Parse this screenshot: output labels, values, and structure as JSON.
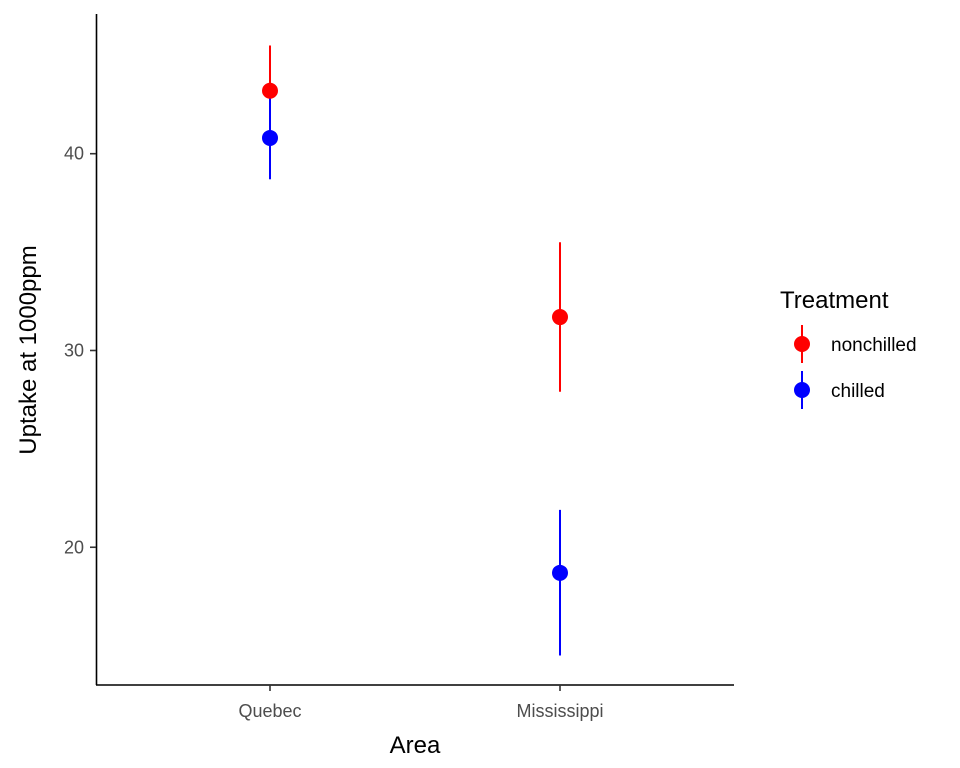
{
  "chart_data": {
    "type": "scatter",
    "xlabel": "Area",
    "ylabel": "Uptake at 1000ppm",
    "categories": [
      "Quebec",
      "Mississippi"
    ],
    "ylim": [
      13,
      47.1
    ],
    "yticks": [
      20,
      30,
      40
    ],
    "grid": false,
    "legend": {
      "title": "Treatment",
      "placement": "right"
    },
    "series": [
      {
        "name": "nonchilled",
        "color": "#ff0000",
        "values": [
          43.2,
          31.7
        ],
        "lower": [
          40.9,
          27.9
        ],
        "upper": [
          45.5,
          35.5
        ]
      },
      {
        "name": "chilled",
        "color": "#0000ff",
        "values": [
          40.8,
          18.7
        ],
        "lower": [
          38.7,
          14.5
        ],
        "upper": [
          42.9,
          21.9
        ]
      }
    ]
  }
}
